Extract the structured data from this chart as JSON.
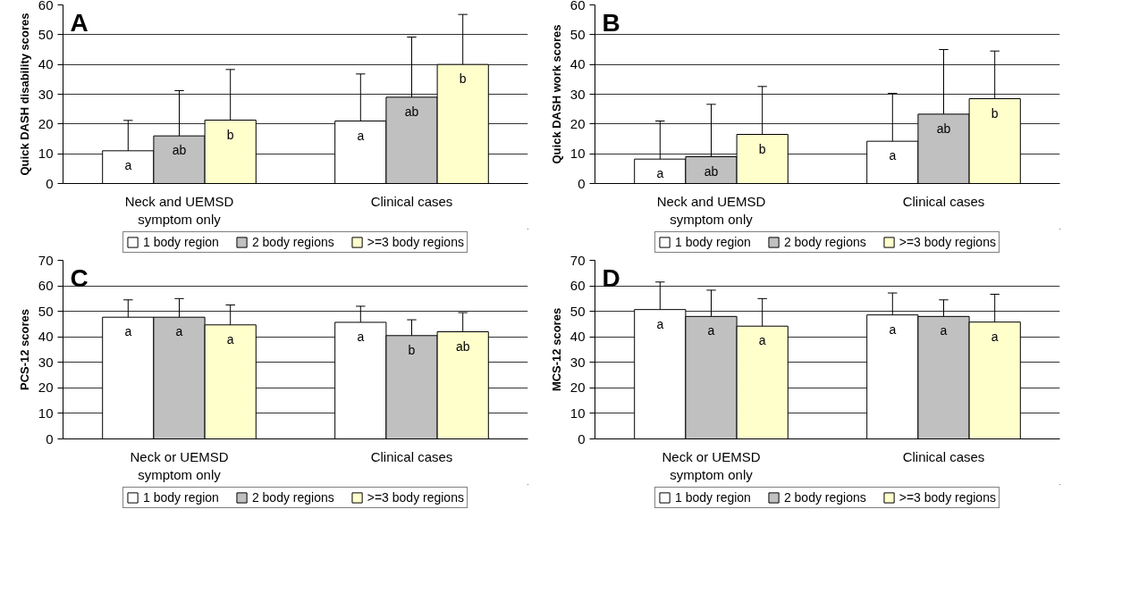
{
  "chart_data": [
    {
      "type": "bar",
      "annotations": [
        "A"
      ],
      "ylabel": "Quick DASH disability scores",
      "categories": [
        "Neck and UEMSD\nsymptom only",
        "Clinical cases"
      ],
      "ylim": [
        0,
        60
      ],
      "yticks": [
        0,
        10,
        20,
        30,
        40,
        50,
        60
      ],
      "grid": "y",
      "legend": "bottom",
      "series": [
        {
          "name": "1 body region",
          "color": "#ffffff",
          "values": [
            11,
            21
          ],
          "errors": [
            [
              11,
              21.2
            ],
            [
              21,
              36.8
            ]
          ],
          "value_labels": [
            "a",
            "a"
          ]
        },
        {
          "name": "2 body regions",
          "color": "#c0c0c0",
          "values": [
            16,
            29
          ],
          "errors": [
            [
              16,
              31.2
            ],
            [
              29,
              49.2
            ]
          ],
          "value_labels": [
            "ab",
            "ab"
          ]
        },
        {
          "name": ">=3 body regions",
          "color": "#ffffcc",
          "values": [
            21.3,
            40
          ],
          "errors": [
            [
              21.3,
              38.3
            ],
            [
              40,
              56.8
            ]
          ],
          "value_labels": [
            "b",
            "b"
          ]
        }
      ]
    },
    {
      "type": "bar",
      "annotations": [
        "B"
      ],
      "ylabel": "Quick DASH work scores",
      "categories": [
        "Neck and UEMSD\nsymptom only",
        "Clinical cases"
      ],
      "ylim": [
        0,
        60
      ],
      "yticks": [
        0,
        10,
        20,
        30,
        40,
        50,
        60
      ],
      "grid": "y",
      "legend": "bottom",
      "series": [
        {
          "name": "1 body region",
          "color": "#ffffff",
          "values": [
            8.2,
            14.2
          ],
          "errors": [
            [
              8.2,
              21
            ],
            [
              14.2,
              30.3
            ]
          ],
          "value_labels": [
            "a",
            "a"
          ]
        },
        {
          "name": "2 body regions",
          "color": "#c0c0c0",
          "values": [
            9,
            23.3
          ],
          "errors": [
            [
              9,
              26.6
            ],
            [
              23.3,
              45
            ]
          ],
          "value_labels": [
            "ab",
            "ab"
          ]
        },
        {
          "name": ">=3 body regions",
          "color": "#ffffcc",
          "values": [
            16.5,
            28.5
          ],
          "errors": [
            [
              16.5,
              32.6
            ],
            [
              28.5,
              44.5
            ]
          ],
          "value_labels": [
            "b",
            "b"
          ]
        }
      ]
    },
    {
      "type": "bar",
      "annotations": [
        "C"
      ],
      "ylabel": "PCS-12 scores",
      "categories": [
        "Neck or UEMSD\nsymptom only",
        "Clinical cases"
      ],
      "ylim": [
        0,
        70
      ],
      "yticks": [
        0,
        10,
        20,
        30,
        40,
        50,
        60,
        70
      ],
      "grid": "y",
      "legend": "bottom",
      "series": [
        {
          "name": "1 body region",
          "color": "#ffffff",
          "values": [
            47.7,
            45.7
          ],
          "errors": [
            [
              47.7,
              54.5
            ],
            [
              45.7,
              52
            ]
          ],
          "value_labels": [
            "a",
            "a"
          ]
        },
        {
          "name": "2 body regions",
          "color": "#c0c0c0",
          "values": [
            47.7,
            40.5
          ],
          "errors": [
            [
              47.7,
              55
            ],
            [
              40.5,
              46.7
            ]
          ],
          "value_labels": [
            "a",
            "b"
          ]
        },
        {
          "name": ">=3 body regions",
          "color": "#ffffcc",
          "values": [
            44.7,
            42
          ],
          "errors": [
            [
              44.7,
              52.5
            ],
            [
              42,
              49.5
            ]
          ],
          "value_labels": [
            "a",
            "ab"
          ]
        }
      ]
    },
    {
      "type": "bar",
      "annotations": [
        "D"
      ],
      "ylabel": "MCS-12 scores",
      "categories": [
        "Neck or UEMSD\nsymptom only",
        "Clinical cases"
      ],
      "ylim": [
        0,
        70
      ],
      "yticks": [
        0,
        10,
        20,
        30,
        40,
        50,
        60,
        70
      ],
      "grid": "y",
      "legend": "bottom",
      "series": [
        {
          "name": "1 body region",
          "color": "#ffffff",
          "values": [
            50.7,
            48.6
          ],
          "errors": [
            [
              50.7,
              61.5
            ],
            [
              48.6,
              57.2
            ]
          ],
          "value_labels": [
            "a",
            "a"
          ]
        },
        {
          "name": "2 body regions",
          "color": "#c0c0c0",
          "values": [
            48,
            48
          ],
          "errors": [
            [
              48,
              58.3
            ],
            [
              48,
              54.5
            ]
          ],
          "value_labels": [
            "a",
            "a"
          ]
        },
        {
          "name": ">=3 body regions",
          "color": "#ffffcc",
          "values": [
            44.2,
            45.8
          ],
          "errors": [
            [
              44.2,
              55
            ],
            [
              45.8,
              56.7
            ]
          ],
          "value_labels": [
            "a",
            "a"
          ]
        }
      ]
    }
  ]
}
